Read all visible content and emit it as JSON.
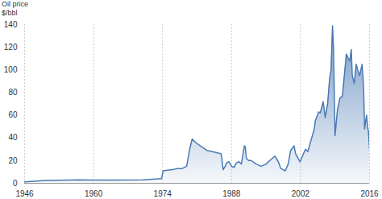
{
  "chart_data": {
    "type": "area",
    "title": "Oil price",
    "subtitle": "$/bbl",
    "x": [
      1946,
      1948,
      1950,
      1953,
      1957,
      1960,
      1965,
      1970,
      1973.8,
      1974.1,
      1975,
      1976,
      1977,
      1978,
      1978.9,
      1979.5,
      1980,
      1980.5,
      1981,
      1982,
      1983,
      1984,
      1985,
      1985.9,
      1986.3,
      1986.7,
      1987,
      1987.5,
      1988,
      1988.5,
      1989,
      1989.5,
      1990,
      1990.6,
      1990.8,
      1991,
      1991.5,
      1992,
      1993,
      1994,
      1995,
      1996,
      1996.8,
      1997.5,
      1998,
      1998.9,
      1999.5,
      2000,
      2000.7,
      2001,
      2001.9,
      2002.5,
      2003,
      2003.5,
      2004,
      2004.8,
      2005,
      2005.7,
      2006,
      2006.6,
      2007,
      2007.5,
      2007.9,
      2008.2,
      2008.5,
      2008.7,
      2008.9,
      2009,
      2009.5,
      2010,
      2010.5,
      2011,
      2011.3,
      2011.7,
      2012,
      2012.3,
      2012.5,
      2012.9,
      2013.3,
      2013.6,
      2014,
      2014.5,
      2014.8,
      2015,
      2015.4,
      2015.6,
      2015.8,
      2016
    ],
    "values": [
      1.2,
      1.8,
      2.5,
      2.7,
      3.0,
      2.9,
      2.9,
      3.0,
      4,
      11,
      11.5,
      12,
      13,
      13,
      15,
      30,
      39,
      37,
      35,
      32,
      29,
      28,
      27,
      26,
      12,
      15,
      18,
      19,
      15,
      14,
      18,
      19,
      17,
      33,
      32,
      22,
      20,
      20,
      17,
      15,
      17,
      21,
      24,
      19,
      13,
      11,
      17,
      29,
      33,
      26,
      19,
      25,
      30,
      28,
      36,
      48,
      55,
      63,
      62,
      72,
      58,
      70,
      92,
      100,
      139,
      118,
      68,
      42,
      65,
      75,
      77,
      100,
      114,
      110,
      108,
      118,
      95,
      88,
      105,
      100,
      95,
      105,
      85,
      48,
      60,
      50,
      45,
      30
    ],
    "color": "#4a7ab4",
    "xlim": [
      1946,
      2016
    ],
    "xticks": [
      1946,
      1960,
      1974,
      1988,
      2002,
      2016
    ],
    "ylim": [
      0,
      140
    ],
    "yticks": [
      0,
      20,
      40,
      60,
      80,
      100,
      120,
      140
    ],
    "grid": true
  }
}
